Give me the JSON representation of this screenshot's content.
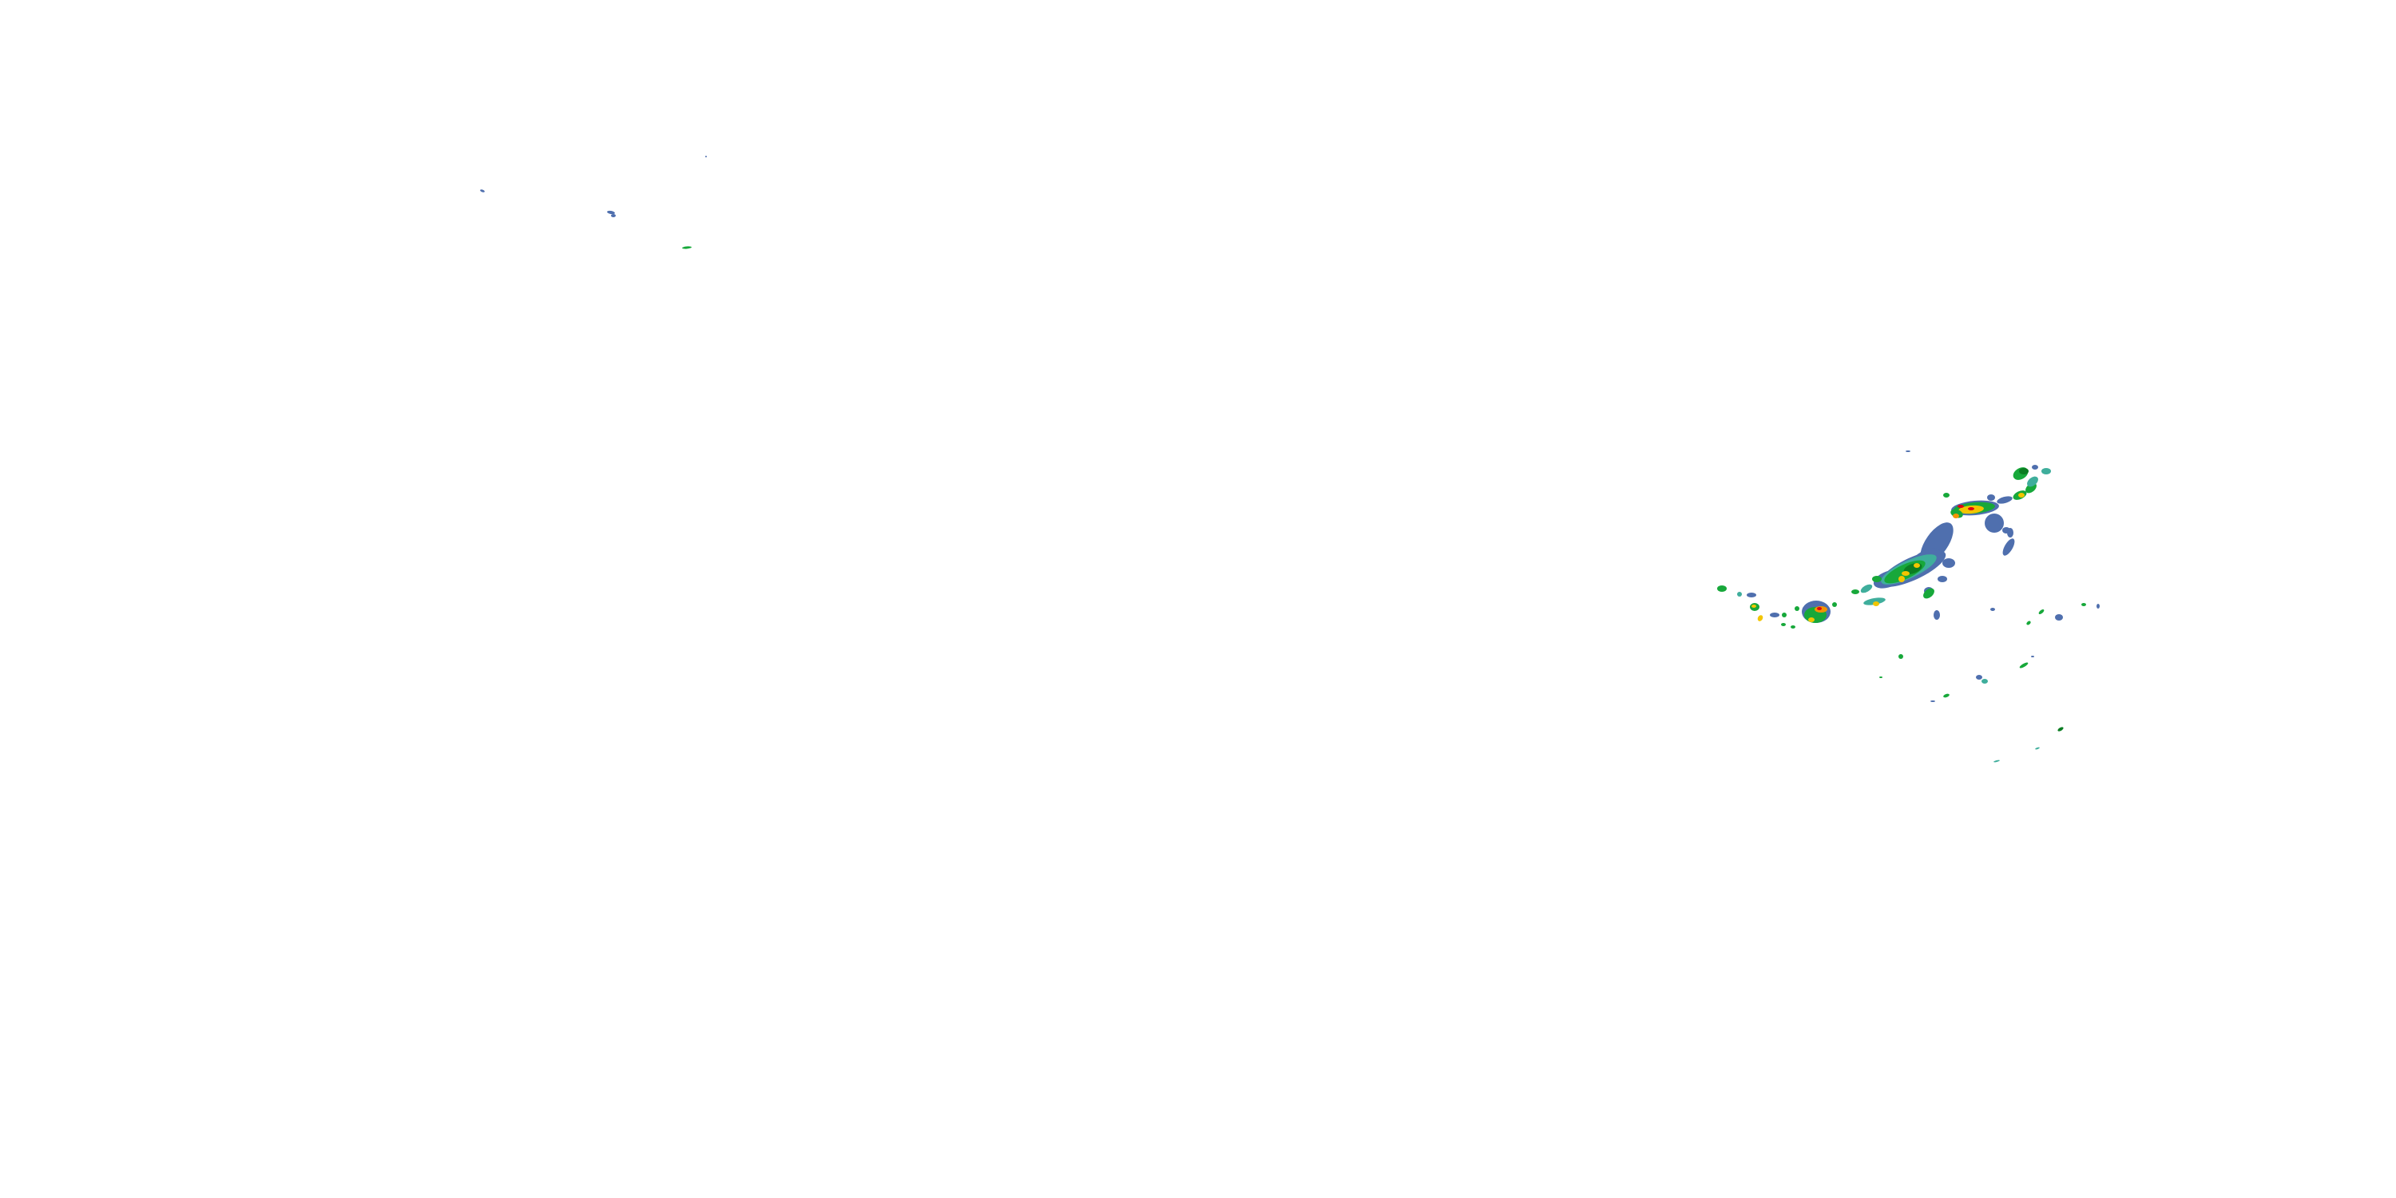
{
  "map": {
    "layer": "radar-reflectivity",
    "colors": {
      "light": "#4f6fae",
      "light_moderate": "#3fae9c",
      "moderate": "#17a83a",
      "moderate_heavy": "#0b7d22",
      "heavy": "#f2c500",
      "very_heavy": "#f39400",
      "extreme": "#e00010"
    }
  }
}
